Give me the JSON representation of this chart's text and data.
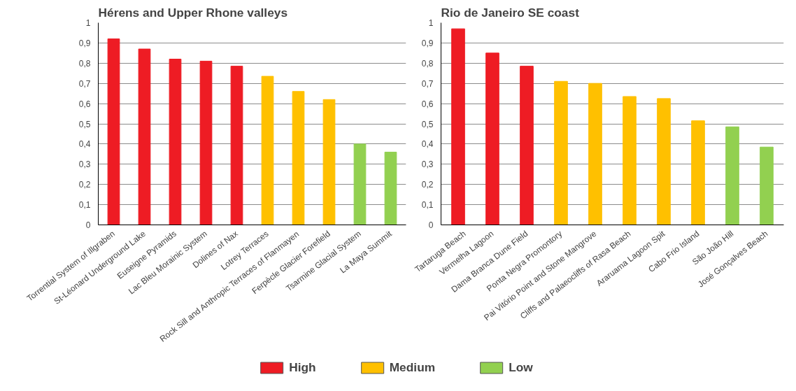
{
  "chart_data": [
    {
      "type": "bar",
      "title": "Hérens and Upper Rhone valleys",
      "categories": [
        "Torrential System of Illgraben",
        "St-Léonard Underground Lake",
        "Euseigne Pyramids",
        "Lac Bleu Morainic System",
        "Dolines of Nax",
        "Lotrey Terraces",
        "Rock Sill and Anthropic Terraces of Flanmayen",
        "Ferpècle Glacier Forefield",
        "Tsarmine Glacial System",
        "La Maya Summit"
      ],
      "series": [
        {
          "name": "High",
          "color": "#ee1c24",
          "values": [
            0.92,
            0.87,
            0.82,
            0.81,
            0.785,
            null,
            null,
            null,
            null,
            null
          ]
        },
        {
          "name": "Medium",
          "color": "#ffc000",
          "values": [
            null,
            null,
            null,
            null,
            null,
            0.735,
            0.66,
            0.62,
            null,
            null
          ]
        },
        {
          "name": "Low",
          "color": "#92d050",
          "values": [
            null,
            null,
            null,
            null,
            null,
            null,
            null,
            null,
            0.4,
            0.36
          ]
        }
      ],
      "ylim": [
        0,
        1
      ],
      "yticks": [
        0,
        {
          "value": 0.1,
          "label": "0,1"
        },
        {
          "value": 0.2,
          "label": "0,2"
        },
        {
          "value": 0.3,
          "label": "0,3"
        },
        {
          "value": 0.4,
          "label": "0,4"
        },
        {
          "value": 0.5,
          "label": "0,5"
        },
        {
          "value": 0.6,
          "label": "0,6"
        },
        {
          "value": 0.7,
          "label": "0,7"
        },
        {
          "value": 0.8,
          "label": "0,8"
        },
        {
          "value": 0.9,
          "label": "0,9"
        },
        1
      ],
      "grid": "y",
      "legend": "bottom"
    },
    {
      "type": "bar",
      "title": "Rio de Janeiro SE coast",
      "categories": [
        "Tartaruga Beach",
        "Vermelha Lagoon",
        "Dama Branca Dune Field",
        "Ponta Negra Promontory",
        "Pai Vitório Point and Stone Mangrove",
        "Cliffs and Palaeocliffs of Rasa Beach",
        "Araruama Lagoon Spit",
        "Cabo Frio Island",
        "São João Hill",
        "José Gonçalves Beach"
      ],
      "series": [
        {
          "color": "#ee1c24",
          "values": [
            0.97,
            0.85,
            0.785,
            null,
            null,
            null,
            null,
            null,
            null,
            null
          ]
        },
        {
          "color": "#ffc000",
          "values": [
            null,
            null,
            null,
            0.71,
            0.7,
            0.635,
            0.625,
            0.515,
            null,
            null
          ]
        },
        {
          "color": "#92d050",
          "values": [
            null,
            null,
            null,
            null,
            null,
            null,
            null,
            null,
            0.485,
            0.385
          ]
        }
      ],
      "ylim": [
        0,
        1
      ],
      "yticks": [
        0,
        {
          "value": 0.1,
          "label": "0,1"
        },
        {
          "value": 0.2,
          "label": "0,2"
        },
        {
          "value": 0.3,
          "label": "0,3"
        },
        {
          "value": 0.4,
          "label": "0,4"
        },
        {
          "value": 0.5,
          "label": "0,5"
        },
        {
          "value": 0.6,
          "label": "0,6"
        },
        {
          "value": 0.7,
          "label": "0,7"
        },
        {
          "value": 0.8,
          "label": "0,8"
        },
        {
          "value": 0.9,
          "label": "0,9"
        },
        1
      ],
      "grid": "y"
    }
  ]
}
